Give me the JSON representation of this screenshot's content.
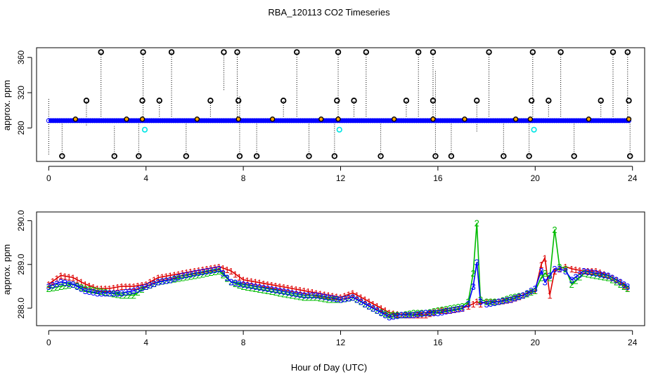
{
  "figure": {
    "title": "RBA_120113  CO2 Timeseries",
    "xlabel": "Hour of Day (UTC)"
  },
  "colors": {
    "open_circle": "#000000",
    "blue_line": "#0000ff",
    "cyan_circle": "#00e5e5",
    "orange_fill": "#ffa500",
    "red_series": "#dd0000",
    "green_series": "#00bb00",
    "blue_series": "#0000ff"
  },
  "chart_data": [
    {
      "type": "scatter",
      "ylabel": "approx. ppm",
      "xlim": [
        -0.5,
        24.5
      ],
      "ylim": [
        242,
        371
      ],
      "xticks": [
        0,
        4,
        8,
        12,
        16,
        20,
        24
      ],
      "yticks": [
        280,
        320,
        360
      ],
      "baseline_ppm": 288.3,
      "series": [
        {
          "marker": "open-circle",
          "high_points": [
            [
              2.15,
              366
            ],
            [
              3.88,
              366
            ],
            [
              5.05,
              366
            ],
            [
              7.2,
              366
            ],
            [
              7.75,
              366
            ],
            [
              10.2,
              366
            ],
            [
              11.9,
              366
            ],
            [
              13.05,
              366
            ],
            [
              15.2,
              366
            ],
            [
              15.8,
              366
            ],
            [
              18.1,
              366
            ],
            [
              19.9,
              366
            ],
            [
              21.05,
              366
            ],
            [
              23.2,
              366
            ],
            [
              23.8,
              366
            ]
          ],
          "mid_points": [
            [
              1.55,
              311
            ],
            [
              3.85,
              311
            ],
            [
              4.55,
              311
            ],
            [
              6.65,
              311
            ],
            [
              7.8,
              311
            ],
            [
              9.65,
              311
            ],
            [
              11.85,
              311
            ],
            [
              12.55,
              311
            ],
            [
              14.7,
              311
            ],
            [
              15.8,
              311
            ],
            [
              17.6,
              311
            ],
            [
              19.85,
              311
            ],
            [
              20.55,
              311
            ],
            [
              22.7,
              311
            ],
            [
              23.85,
              311
            ]
          ],
          "low_points": [
            [
              0.55,
              248
            ],
            [
              2.7,
              248
            ],
            [
              3.7,
              248
            ],
            [
              5.65,
              248
            ],
            [
              7.85,
              248
            ],
            [
              8.55,
              248
            ],
            [
              10.7,
              248
            ],
            [
              11.75,
              248
            ],
            [
              13.65,
              248
            ],
            [
              15.9,
              248
            ],
            [
              16.55,
              248
            ],
            [
              18.7,
              248
            ],
            [
              19.75,
              248
            ],
            [
              21.6,
              248
            ],
            [
              23.9,
              248
            ]
          ],
          "small_points": [
            [
              1.1,
              290
            ],
            [
              3.2,
              290
            ],
            [
              6.1,
              290
            ],
            [
              9.2,
              290
            ],
            [
              11.2,
              290
            ],
            [
              14.2,
              290
            ],
            [
              17.1,
              290
            ],
            [
              19.2,
              290
            ],
            [
              22.2,
              290
            ],
            [
              3.85,
              290
            ],
            [
              7.8,
              290
            ],
            [
              11.9,
              290
            ],
            [
              15.8,
              290
            ],
            [
              19.8,
              290
            ],
            [
              23.85,
              290
            ]
          ]
        },
        {
          "marker": "cyan-circle",
          "points": [
            [
              3.95,
              278
            ],
            [
              11.95,
              278
            ],
            [
              19.95,
              278
            ]
          ]
        }
      ],
      "annotations": {
        "dotted_spikes": [
          [
            1.55,
            283,
            311
          ],
          [
            2.15,
            293,
            366
          ],
          [
            3.88,
            293,
            366
          ],
          [
            4.55,
            293,
            311
          ],
          [
            5.05,
            293,
            366
          ],
          [
            6.65,
            293,
            311
          ],
          [
            7.2,
            323,
            366
          ],
          [
            7.75,
            293,
            366
          ],
          [
            9.65,
            293,
            311
          ],
          [
            10.2,
            293,
            366
          ],
          [
            11.9,
            293,
            366
          ],
          [
            12.55,
            293,
            311
          ],
          [
            13.05,
            293,
            366
          ],
          [
            14.7,
            293,
            311
          ],
          [
            15.2,
            293,
            366
          ],
          [
            15.8,
            293,
            366
          ],
          [
            17.6,
            276,
            311
          ],
          [
            18.1,
            293,
            366
          ],
          [
            19.9,
            293,
            366
          ],
          [
            20.55,
            293,
            311
          ],
          [
            21.05,
            293,
            366
          ],
          [
            22.7,
            293,
            311
          ],
          [
            23.2,
            293,
            366
          ],
          [
            23.8,
            293,
            366
          ],
          [
            0.0,
            250,
            314
          ],
          [
            0.55,
            248,
            287
          ],
          [
            2.7,
            248,
            282
          ],
          [
            3.7,
            248,
            288
          ],
          [
            5.65,
            248,
            288
          ],
          [
            7.85,
            248,
            316
          ],
          [
            8.55,
            248,
            288
          ],
          [
            10.7,
            248,
            288
          ],
          [
            11.75,
            248,
            288
          ],
          [
            13.65,
            248,
            288
          ],
          [
            15.9,
            248,
            346
          ],
          [
            16.55,
            248,
            288
          ],
          [
            18.7,
            248,
            288
          ],
          [
            19.75,
            248,
            288
          ],
          [
            21.6,
            248,
            288
          ],
          [
            23.9,
            248,
            288
          ]
        ]
      }
    },
    {
      "type": "line",
      "ylabel": "approx. ppm",
      "xlim": [
        -0.5,
        24.5
      ],
      "ylim": [
        287.6,
        290.2
      ],
      "xticks": [
        0,
        4,
        8,
        12,
        16,
        20,
        24
      ],
      "yticks": [
        288.0,
        289.0,
        290.0
      ],
      "x": [
        0,
        0.5,
        1,
        1.5,
        2,
        2.5,
        3,
        3.5,
        4,
        4.5,
        5,
        5.5,
        6,
        6.5,
        7,
        7.5,
        8,
        8.5,
        9,
        9.5,
        10,
        10.5,
        11,
        11.5,
        12,
        12.5,
        13,
        13.5,
        14,
        14.5,
        15,
        15.5,
        16,
        16.5,
        17,
        17.25,
        17.45,
        17.6,
        17.75,
        18,
        18.5,
        19,
        19.5,
        20,
        20.25,
        20.4,
        20.6,
        20.8,
        21,
        21.25,
        21.5,
        22,
        22.5,
        23,
        23.5,
        23.8
      ],
      "series": [
        {
          "name": "1",
          "values": [
            288.55,
            288.75,
            288.7,
            288.55,
            288.45,
            288.45,
            288.5,
            288.5,
            288.55,
            288.7,
            288.75,
            288.8,
            288.85,
            288.9,
            288.95,
            288.85,
            288.65,
            288.6,
            288.55,
            288.5,
            288.45,
            288.4,
            288.35,
            288.3,
            288.25,
            288.35,
            288.2,
            288.05,
            287.9,
            287.85,
            287.85,
            287.85,
            287.95,
            287.95,
            288.0,
            288.05,
            288.1,
            288.15,
            288.1,
            288.15,
            288.15,
            288.2,
            288.3,
            288.4,
            289.0,
            289.15,
            288.3,
            288.85,
            288.9,
            288.95,
            288.9,
            288.85,
            288.85,
            288.75,
            288.6,
            288.45
          ],
          "marker": "1"
        },
        {
          "name": "2",
          "values": [
            288.45,
            288.5,
            288.55,
            288.45,
            288.4,
            288.35,
            288.3,
            288.3,
            288.5,
            288.6,
            288.65,
            288.7,
            288.75,
            288.8,
            288.85,
            288.6,
            288.5,
            288.45,
            288.4,
            288.35,
            288.3,
            288.25,
            288.25,
            288.2,
            288.2,
            288.25,
            288.1,
            287.95,
            287.85,
            287.85,
            287.9,
            287.9,
            287.95,
            288.0,
            288.05,
            288.15,
            288.8,
            289.95,
            288.2,
            288.15,
            288.15,
            288.25,
            288.3,
            288.4,
            288.7,
            288.8,
            288.7,
            289.8,
            288.95,
            288.9,
            288.55,
            288.8,
            288.75,
            288.7,
            288.55,
            288.45
          ],
          "marker": "2"
        },
        {
          "name": "3",
          "values": [
            288.5,
            288.6,
            288.55,
            288.4,
            288.35,
            288.35,
            288.35,
            288.4,
            288.5,
            288.6,
            288.65,
            288.75,
            288.8,
            288.85,
            288.9,
            288.6,
            288.55,
            288.5,
            288.45,
            288.4,
            288.35,
            288.3,
            288.3,
            288.25,
            288.2,
            288.25,
            288.1,
            287.95,
            287.8,
            287.85,
            287.85,
            287.9,
            287.9,
            287.95,
            288.0,
            288.1,
            288.5,
            289.05,
            288.15,
            288.1,
            288.15,
            288.2,
            288.3,
            288.45,
            288.85,
            288.6,
            288.75,
            288.9,
            288.9,
            288.85,
            288.65,
            288.85,
            288.8,
            288.75,
            288.6,
            288.5
          ],
          "marker": "3"
        }
      ]
    }
  ]
}
